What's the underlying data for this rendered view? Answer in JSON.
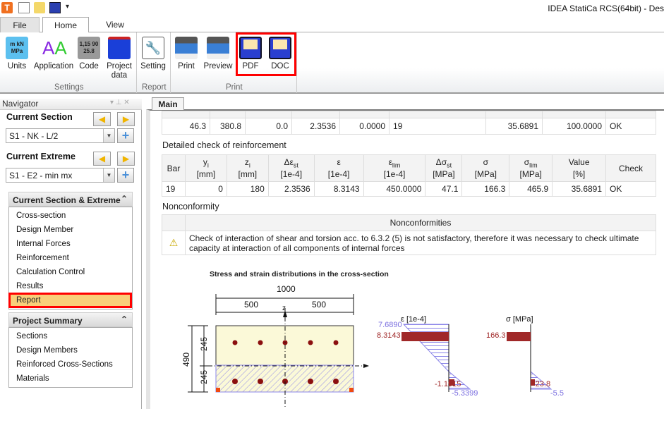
{
  "app": {
    "title": "IDEA StatiCa RCS(64bit) - Des"
  },
  "ribbon": {
    "tabs": [
      "File",
      "Home",
      "View"
    ],
    "groups": [
      {
        "label": "Settings",
        "buttons": [
          "Units",
          "Application",
          "Code",
          "Project data"
        ]
      },
      {
        "label": "Report",
        "buttons": [
          "Setting"
        ]
      },
      {
        "label": "Print",
        "buttons": [
          "Print",
          "Preview",
          "PDF",
          "DOC"
        ]
      }
    ]
  },
  "navigator": {
    "title": "Navigator",
    "current_section_label": "Current Section",
    "current_section_value": "S1 - NK - L/2",
    "current_extreme_label": "Current Extreme",
    "current_extreme_value": "S1 - E2 - min mx",
    "section1": {
      "title": "Current Section & Extreme",
      "items": [
        "Cross-section",
        "Design Member",
        "Internal Forces",
        "Reinforcement",
        "Calculation Control",
        "Results",
        "Report"
      ],
      "selected": "Report"
    },
    "section2": {
      "title": "Project Summary",
      "items": [
        "Sections",
        "Design Members",
        "Reinforced Cross-Sections",
        "Materials"
      ]
    }
  },
  "main": {
    "tab": "Main",
    "top_row": [
      "46.3",
      "380.8",
      "0.0",
      "2.3536",
      "0.0000",
      "19",
      "35.6891",
      "100.0000",
      "OK"
    ],
    "detail": {
      "title": "Detailed check of reinforcement",
      "headers": [
        [
          "Bar",
          ""
        ],
        [
          "y",
          "i",
          "[mm]"
        ],
        [
          "z",
          "i",
          "[mm]"
        ],
        [
          "Δε",
          "st",
          "[1e-4]"
        ],
        [
          "ε",
          "",
          "[1e-4]"
        ],
        [
          "ε",
          "lim",
          "[1e-4]"
        ],
        [
          "Δσ",
          "st",
          "[MPa]"
        ],
        [
          "σ",
          "",
          "[MPa]"
        ],
        [
          "σ",
          "lim",
          "[MPa]"
        ],
        [
          "Value",
          "",
          "[%]"
        ],
        [
          "Check",
          ""
        ]
      ],
      "row": [
        "19",
        "0",
        "180",
        "2.3536",
        "8.3143",
        "450.0000",
        "47.1",
        "166.3",
        "465.9",
        "35.6891",
        "OK"
      ]
    },
    "nonconformity": {
      "title": "Nonconformity",
      "header": "Nonconformities",
      "message": "Check of interaction of shear and torsion acc. to 6.3.2 (5) is not satisfactory, therefore it was necessary to check ultimate capacity at interaction of all components of internal forces"
    },
    "figure": {
      "title": "Stress and strain distributions in the cross-section",
      "dims": {
        "width": "1000",
        "half_left": "500",
        "half_right": "500",
        "height": "490",
        "upper": "245",
        "lower": "245",
        "z_axis": "z"
      },
      "strain": {
        "title": "ε [1e-4]",
        "top": "7.6890",
        "bar_top": "8.3143",
        "bar_bottom": "-1.1915",
        "bottom": "-5.3399"
      },
      "stress": {
        "title": "σ [MPa]",
        "bar_top": "166.3",
        "bar_bottom": "-23.8",
        "bottom": "-5.5"
      }
    }
  }
}
